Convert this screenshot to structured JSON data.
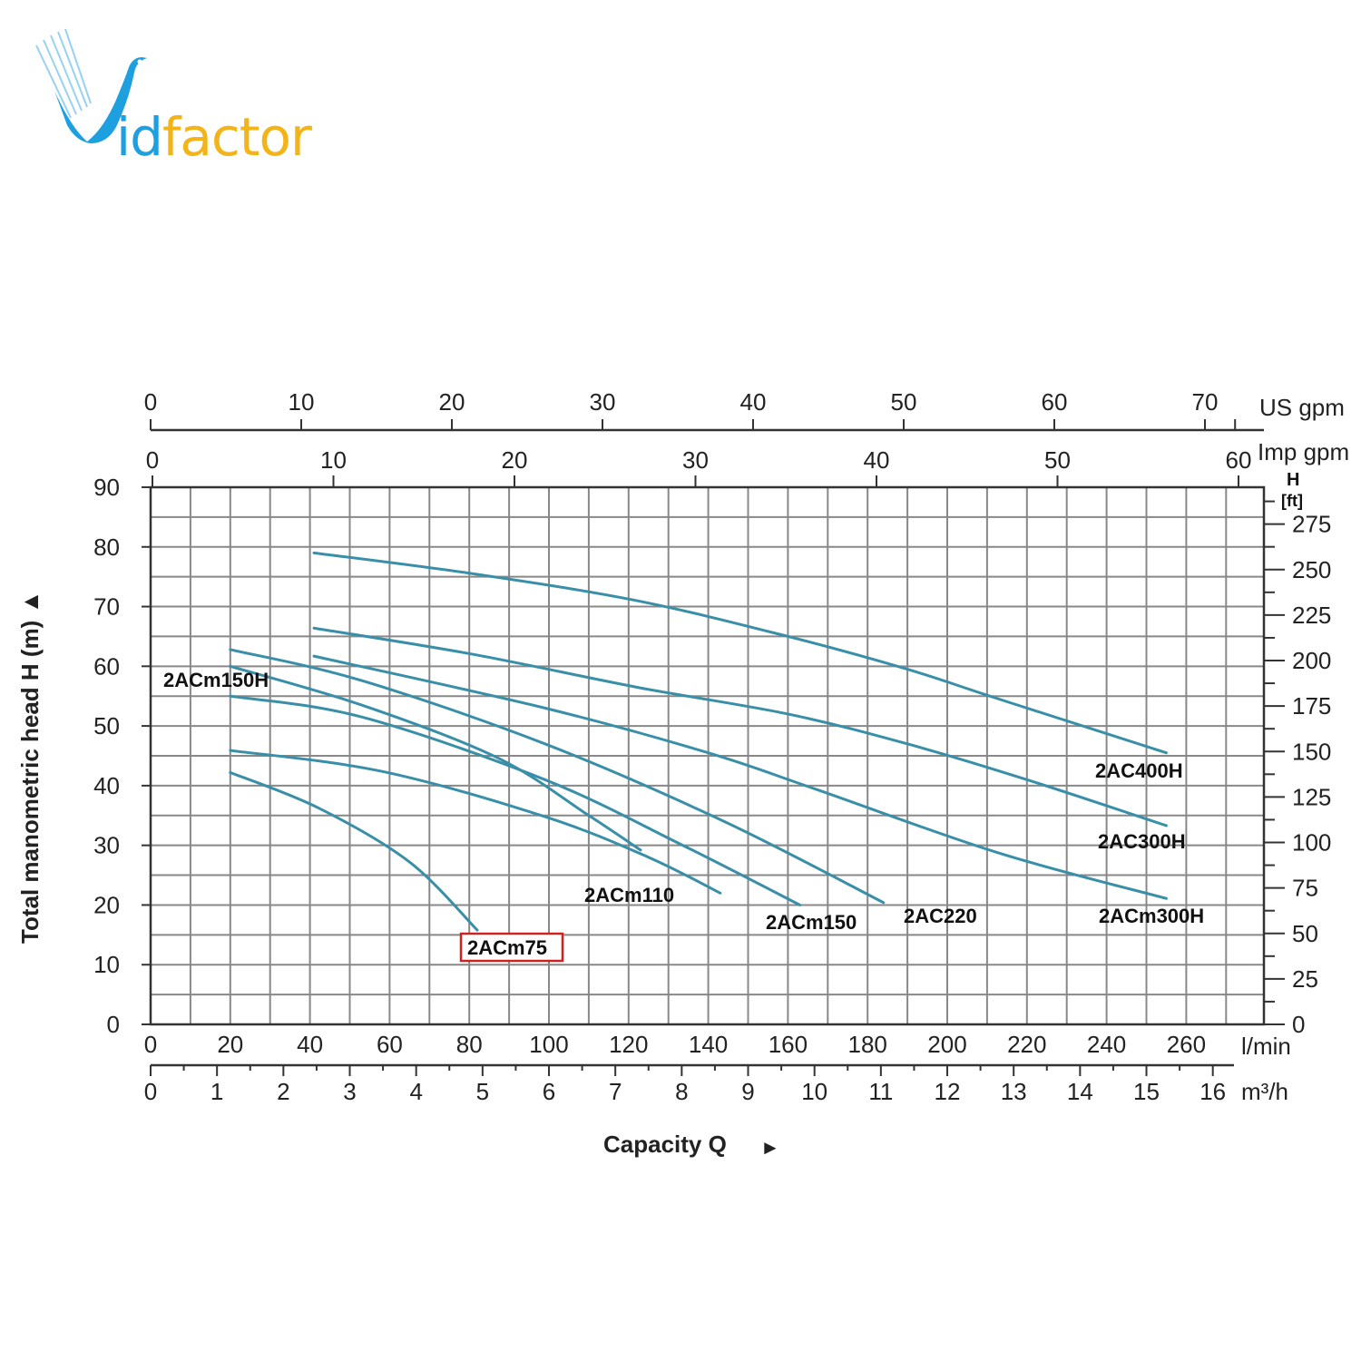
{
  "logo": {
    "part1": "id",
    "part2": "factor",
    "brand_blue": "#1e9fe0",
    "brand_yellow": "#f2b418"
  },
  "chart_data": {
    "type": "line",
    "title": "",
    "xlabel": "Capacity Q",
    "ylabel": "Total manometric head H (m)",
    "x_unit": "l/min",
    "xlim": [
      0,
      280
    ],
    "ylim": [
      0,
      90
    ],
    "grid": true,
    "x_ticks": [
      0,
      20,
      40,
      60,
      80,
      100,
      120,
      140,
      160,
      180,
      200,
      220,
      240,
      260
    ],
    "y_ticks": [
      0,
      10,
      20,
      30,
      40,
      50,
      60,
      70,
      80,
      90
    ],
    "secondary_axes": {
      "us_gpm": {
        "label": "US gpm",
        "ticks": [
          0,
          10,
          20,
          30,
          40,
          50,
          60,
          70
        ]
      },
      "imp_gpm": {
        "label": "Imp gpm",
        "ticks": [
          0,
          10,
          20,
          30,
          40,
          50,
          60
        ]
      },
      "m3h": {
        "label": "m³/h",
        "ticks": [
          0,
          1,
          2,
          3,
          4,
          5,
          6,
          7,
          8,
          9,
          10,
          11,
          12,
          13,
          14,
          15,
          16
        ]
      },
      "head_ft": {
        "label": "H [ft]",
        "ticks": [
          0,
          25,
          50,
          75,
          100,
          125,
          150,
          175,
          200,
          225,
          250,
          275
        ]
      }
    },
    "series": [
      {
        "name": "2AC400H",
        "x": [
          41,
          81,
          122,
          160,
          190,
          213,
          255
        ],
        "y": [
          79,
          75.5,
          71,
          65,
          59.5,
          54.5,
          45.5
        ]
      },
      {
        "name": "2AC300H",
        "x": [
          41,
          81,
          122,
          160,
          190,
          220,
          255
        ],
        "y": [
          66.4,
          62,
          56.5,
          52,
          47,
          41,
          33.3
        ]
      },
      {
        "name": "2ACm300H",
        "x": [
          41,
          99,
          140,
          167,
          213,
          255
        ],
        "y": [
          61.7,
          53,
          45.5,
          39.4,
          28.7,
          21.1
        ]
      },
      {
        "name": "2AC220",
        "x": [
          20,
          53,
          99,
          144,
          184
        ],
        "y": [
          62.8,
          57.6,
          47,
          34,
          20.4
        ]
      },
      {
        "name": "2ACm150H",
        "x": [
          20,
          53,
          87,
          110,
          123
        ],
        "y": [
          60,
          53.5,
          44.7,
          35,
          29.2
        ]
      },
      {
        "name": "2ACm150",
        "x": [
          20,
          53,
          99,
          133,
          163
        ],
        "y": [
          55,
          51.5,
          41,
          30.2,
          20
        ]
      },
      {
        "name": "2ACm110",
        "x": [
          20,
          58,
          99,
          125,
          143
        ],
        "y": [
          45.9,
          42.4,
          34.8,
          28,
          22
        ]
      },
      {
        "name": "2ACm75",
        "x": [
          20,
          42,
          65,
          82
        ],
        "y": [
          42.2,
          36.3,
          27.2,
          15.8
        ]
      }
    ],
    "highlighted_series": "2ACm75",
    "line_color": "#3a8fa8",
    "highlight_color": "#cc2222"
  },
  "axes": {
    "us_gpm_label": "US gpm",
    "imp_gpm_label": "Imp gpm",
    "ft_label_h": "H",
    "ft_label_unit": "[ft]",
    "lmin_label": "l/min",
    "m3h_label": "m³/h",
    "y_title": "Total manometric head H (m)  ▲",
    "x_title": "Capacity Q",
    "x_title_arrow": "►"
  },
  "labels": {
    "2AC400H": "2AC400H",
    "2AC300H": "2AC300H",
    "2ACm300H": "2ACm300H",
    "2AC220": "2AC220",
    "2ACm150": "2ACm150",
    "2ACm110": "2ACm110",
    "2ACm150H": "2ACm150H",
    "2ACm75": "2ACm75"
  }
}
